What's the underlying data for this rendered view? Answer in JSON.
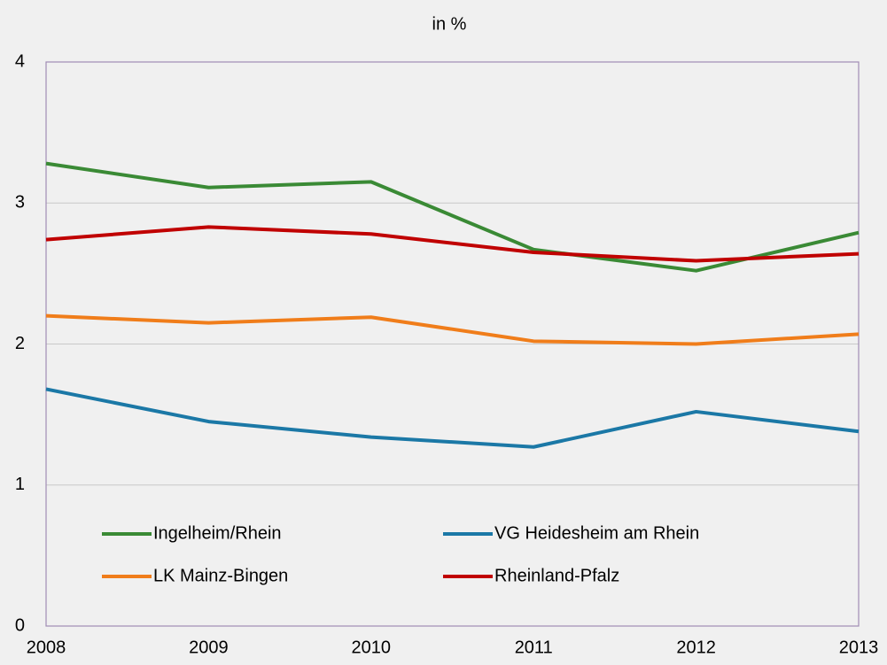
{
  "chart_data": {
    "type": "line",
    "title": "in %",
    "categories": [
      "2008",
      "2009",
      "2010",
      "2011",
      "2012",
      "2013"
    ],
    "series": [
      {
        "name": "Ingelheim/Rhein",
        "color": "#3a8a35",
        "values": [
          3.28,
          3.11,
          3.15,
          2.67,
          2.52,
          2.79
        ]
      },
      {
        "name": "VG Heidesheim am Rhein",
        "color": "#1b78a6",
        "values": [
          1.68,
          1.45,
          1.34,
          1.27,
          1.52,
          1.38
        ]
      },
      {
        "name": "LK Mainz-Bingen",
        "color": "#f07d1a",
        "values": [
          2.2,
          2.15,
          2.19,
          2.02,
          2.0,
          2.07
        ]
      },
      {
        "name": "Rheinland-Pfalz",
        "color": "#c00000",
        "values": [
          2.74,
          2.83,
          2.78,
          2.65,
          2.59,
          2.64
        ]
      }
    ],
    "ylim": [
      0,
      4
    ],
    "yticks": [
      0,
      1,
      2,
      3,
      4
    ],
    "grid": true,
    "legend": "inside-bottom"
  }
}
